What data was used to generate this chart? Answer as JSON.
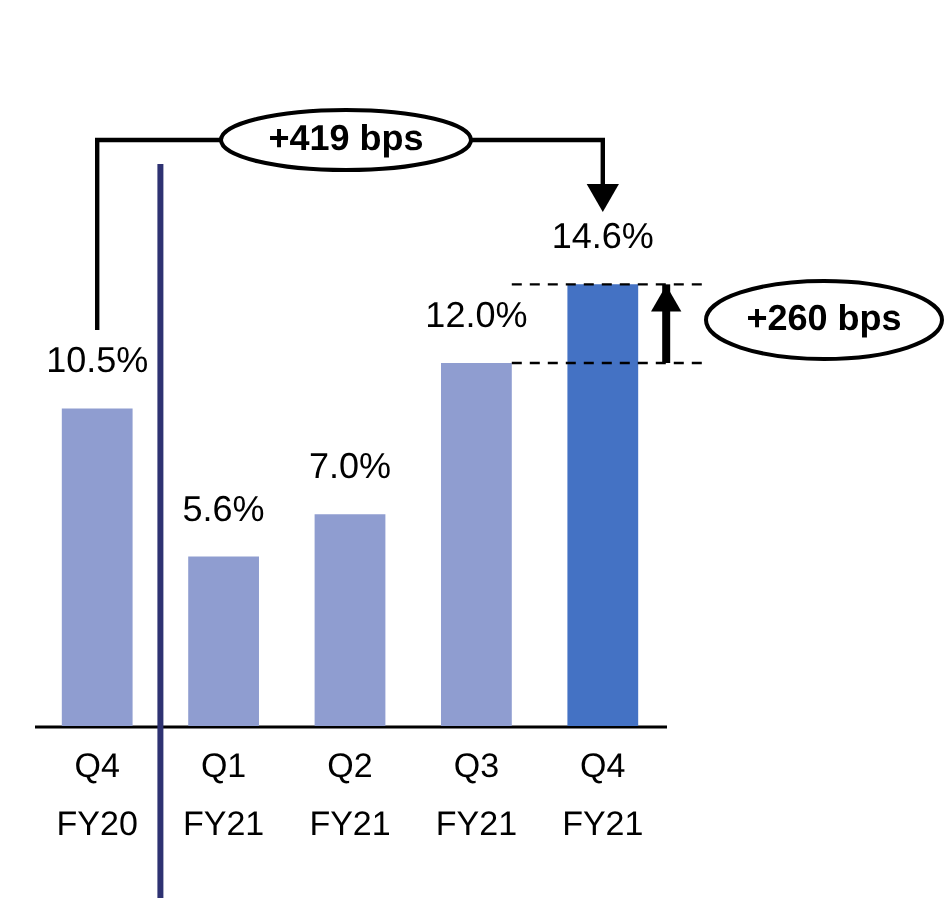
{
  "chart_data": {
    "type": "bar",
    "categories": [
      "Q4 FY20",
      "Q1 FY21",
      "Q2 FY21",
      "Q3 FY21",
      "Q4 FY21"
    ],
    "values": [
      10.5,
      5.6,
      7.0,
      12.0,
      14.6
    ],
    "colors": [
      "#8f9dd0",
      "#8f9dd0",
      "#8f9dd0",
      "#8f9dd0",
      "#4472c4"
    ],
    "value_labels": [
      "10.5%",
      "5.6%",
      "7.0%",
      "12.0%",
      "14.6%"
    ],
    "annotations": [
      "+419 bps",
      "+260 bps"
    ],
    "ref_lines": [
      {
        "axis": "x",
        "value": "Q1 FY21",
        "color": "#2e3272"
      }
    ],
    "grid": false
  }
}
